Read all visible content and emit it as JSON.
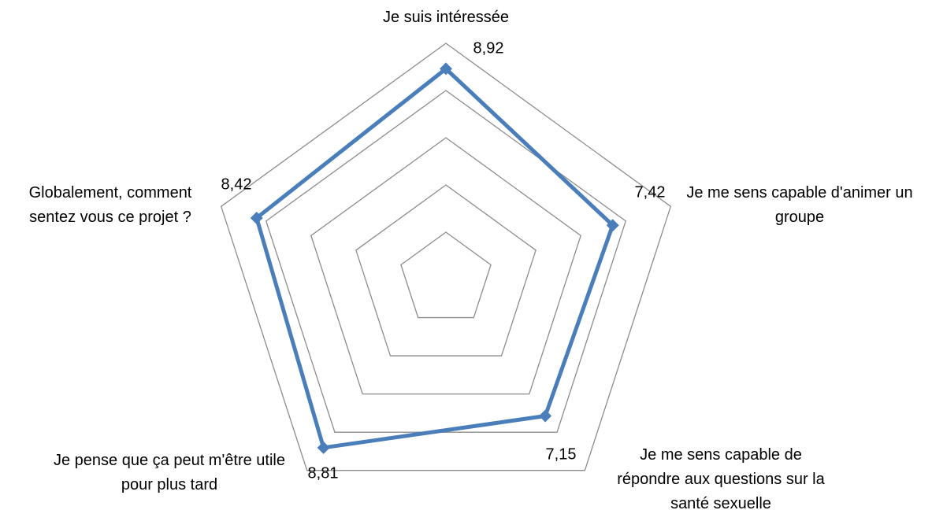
{
  "chart_data": {
    "type": "radar",
    "categories": [
      "Je suis intéressée",
      "Je me sens capable d'animer un groupe",
      "Je me sens capable de répondre aux questions sur la santé sexuelle",
      "Je pense que ça peut m'être utile pour plus tard",
      "Globalement, comment sentez vous ce projet ?"
    ],
    "series": [
      {
        "color": "#4a7ebb",
        "values": [
          8.92,
          7.42,
          7.15,
          8.81,
          8.42
        ],
        "value_labels": [
          "8,92",
          "7,42",
          "7,15",
          "8,81",
          "8,42"
        ]
      }
    ],
    "rlim": [
      0,
      10
    ],
    "rticks": [
      2,
      4,
      6,
      8,
      10
    ],
    "grid": true
  }
}
